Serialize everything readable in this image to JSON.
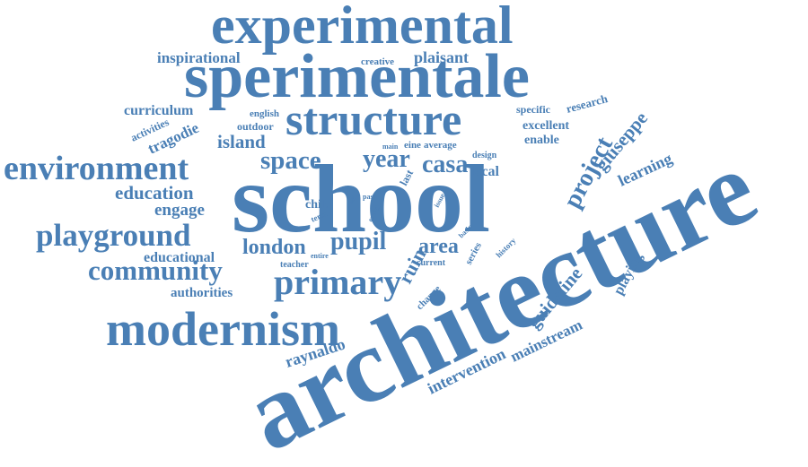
{
  "cloud": {
    "color": "#4a7fb5",
    "words": [
      "architecture",
      "school",
      "sperimentale",
      "experimental",
      "structure",
      "modernism",
      "environment",
      "playground",
      "community",
      "primary",
      "space",
      "year",
      "casa",
      "project",
      "giuseppe",
      "learning",
      "education",
      "engage",
      "educational",
      "authorities",
      "london",
      "pupil",
      "area",
      "ruin",
      "guideline",
      "playing",
      "mainstream",
      "intervention",
      "raynaldo",
      "inspirational",
      "plaisant",
      "creative",
      "curriculum",
      "activities",
      "tragodie",
      "island",
      "english",
      "outdoor",
      "specific",
      "research",
      "excellent",
      "enable",
      "main",
      "eine",
      "average",
      "design",
      "local",
      "last",
      "child",
      "term",
      "past",
      "enrich",
      "issue",
      "entire",
      "teacher",
      "current",
      "series",
      "history",
      "basic",
      "change",
      "self"
    ]
  }
}
